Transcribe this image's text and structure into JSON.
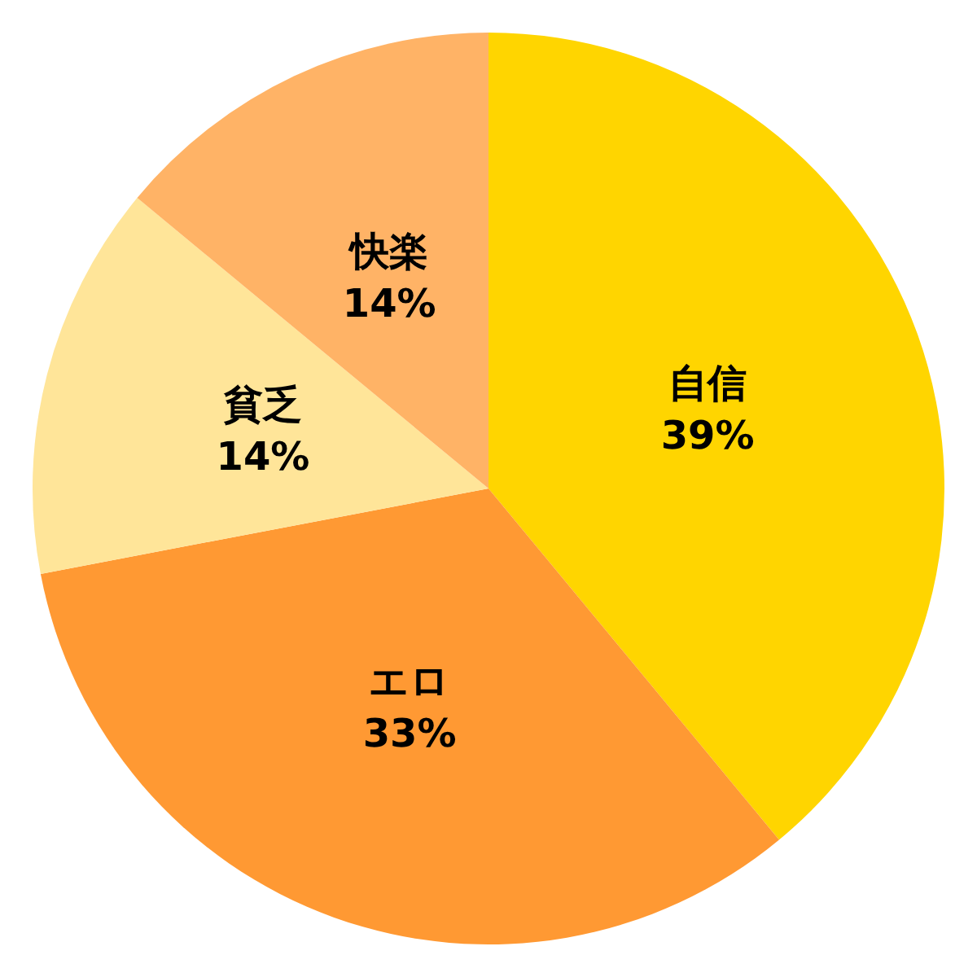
{
  "chart_data": {
    "type": "pie",
    "categories": [
      "自信",
      "エロ",
      "貧乏",
      "快楽"
    ],
    "values": [
      39,
      33,
      14,
      14
    ],
    "colors": [
      "#ffd500",
      "#ff9933",
      "#ffe599",
      "#ffb366"
    ],
    "value_labels": [
      "39%",
      "33%",
      "14%",
      "14%"
    ]
  }
}
